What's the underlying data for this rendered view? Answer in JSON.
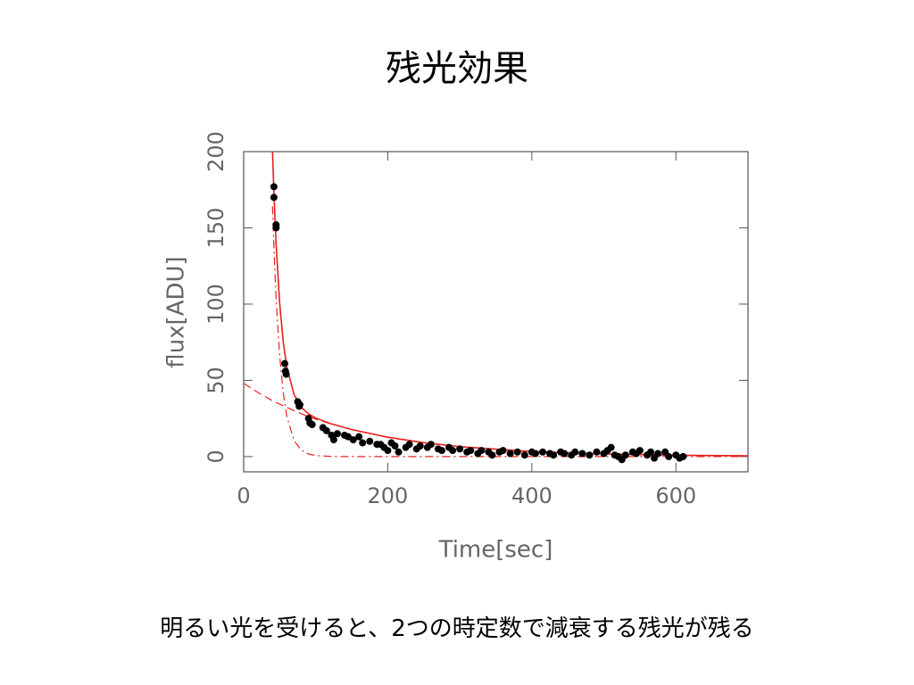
{
  "slide": {
    "title": "残光効果",
    "caption": "明るい光を受けると、2つの時定数で減衰する残光が残る"
  },
  "chart_data": {
    "type": "scatter",
    "xlabel": "Time[sec]",
    "ylabel": "flux[ADU]",
    "xlim": [
      0,
      700
    ],
    "ylim": [
      -10,
      200
    ],
    "xticks": [
      0,
      200,
      400,
      600
    ],
    "yticks": [
      0,
      50,
      100,
      150,
      200
    ],
    "points": {
      "color": "#000000",
      "x": [
        42,
        42,
        45,
        45,
        57,
        58,
        59,
        75,
        77,
        78,
        90,
        92,
        95,
        110,
        115,
        122,
        125,
        130,
        140,
        145,
        152,
        160,
        165,
        175,
        185,
        190,
        195,
        200,
        205,
        210,
        215,
        225,
        230,
        240,
        245,
        255,
        260,
        270,
        275,
        285,
        290,
        300,
        310,
        315,
        325,
        330,
        340,
        345,
        355,
        360,
        370,
        380,
        390,
        400,
        405,
        415,
        425,
        430,
        440,
        445,
        455,
        460,
        470,
        480,
        490,
        500,
        505,
        510,
        515,
        520,
        525,
        530,
        540,
        545,
        550,
        560,
        565,
        570,
        575,
        585,
        590,
        600,
        605,
        610
      ],
      "values": [
        177,
        170,
        152,
        150,
        61,
        56,
        54,
        36,
        33,
        34,
        25,
        22,
        21,
        19,
        17,
        14,
        11,
        15,
        14,
        13,
        11,
        13,
        9,
        10,
        8,
        8,
        6,
        4,
        9,
        7,
        3,
        6,
        8,
        5,
        7,
        6,
        8,
        5,
        4,
        6,
        4,
        5,
        3,
        4,
        2,
        4,
        3,
        1,
        3,
        4,
        2,
        3,
        1,
        3,
        2,
        3,
        2,
        1,
        3,
        2,
        1,
        3,
        2,
        1,
        3,
        2,
        4,
        6,
        1,
        0,
        -2,
        1,
        3,
        2,
        4,
        1,
        3,
        -1,
        2,
        3,
        0,
        1,
        -1,
        0
      ]
    },
    "lines": [
      {
        "style": "solid",
        "color": "#e8201e",
        "x": [
          40,
          42,
          45,
          50,
          55,
          60,
          70,
          80,
          90,
          100,
          120,
          150,
          200,
          250,
          300,
          400,
          500,
          600,
          700
        ],
        "values": [
          200.7,
          172.9,
          139.4,
          100.0,
          74.8,
          58.4,
          40.6,
          32.3,
          28.0,
          25.3,
          21.7,
          17.7,
          12.7,
          9.1,
          6.5,
          3.3,
          1.7,
          0.9,
          0.5
        ]
      },
      {
        "style": "dashed",
        "color": "#e8201e",
        "x": [
          0,
          20,
          40,
          60,
          80,
          100,
          120,
          150,
          200,
          250,
          300,
          400,
          500,
          600,
          700
        ],
        "values": [
          48,
          42.0,
          36.6,
          32.2,
          28.1,
          24.6,
          21.6,
          17.7,
          12.7,
          9.1,
          6.5,
          3.3,
          1.7,
          0.9,
          0.5
        ]
      },
      {
        "style": "dashdot",
        "color": "#e8201e",
        "x": [
          40,
          42,
          45,
          50,
          55,
          60,
          70,
          80,
          90,
          100,
          120,
          150,
          700
        ],
        "values": [
          164.1,
          136.6,
          103.8,
          65.6,
          41.5,
          26.2,
          10.5,
          4.2,
          1.7,
          0.7,
          0.1,
          0,
          0
        ]
      }
    ]
  }
}
